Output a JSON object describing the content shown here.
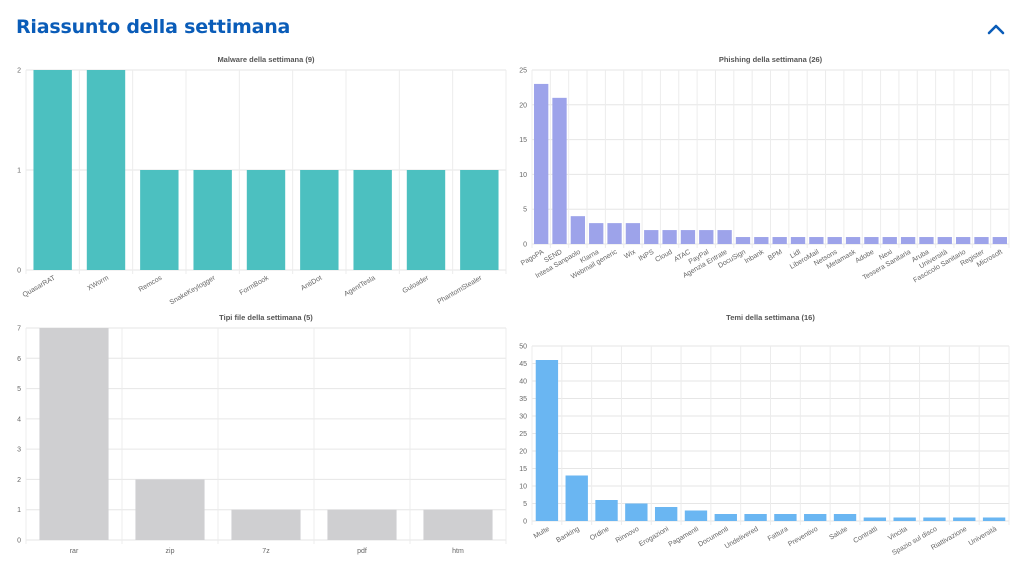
{
  "header": {
    "title": "Riassunto della settimana",
    "collapse_icon": "chevron-up-icon",
    "accent_color": "#0a5cb8"
  },
  "chart_data": [
    {
      "id": "malware",
      "type": "bar",
      "title": "Malware della settimana (9)",
      "color": "#4cc0c0",
      "categories": [
        "QuasarRAT",
        "XWorm",
        "Remcos",
        "SnakeKeylogger",
        "FormBook",
        "AntiDot",
        "AgentTesla",
        "Guloader",
        "PhantomStealer"
      ],
      "values": [
        2,
        2,
        1,
        1,
        1,
        1,
        1,
        1,
        1
      ],
      "ylim": [
        0,
        2
      ],
      "yticks": [
        0,
        1,
        2
      ],
      "rotated_labels": true,
      "grid": true,
      "xlabel": "",
      "ylabel": ""
    },
    {
      "id": "phishing",
      "type": "bar",
      "title": "Phishing della settimana (26)",
      "color": "#9da3ea",
      "categories": [
        "PagoPA",
        "SEND",
        "Intesa Sanpaolo",
        "Klarna",
        "Webmail generic",
        "Wix",
        "INPS",
        "Cloud",
        "ATAC",
        "PayPal",
        "Agenzia Entrate",
        "DocuSign",
        "Inbank",
        "BPM",
        "Lidl",
        "LiberoMail",
        "Netsons",
        "Metamask",
        "Adobe",
        "Nexi",
        "Tessera Sanitaria",
        "Aruba",
        "Università",
        "Fascicolo Sanitario",
        "Register",
        "Microsoft"
      ],
      "values": [
        23,
        21,
        4,
        3,
        3,
        3,
        2,
        2,
        2,
        2,
        2,
        1,
        1,
        1,
        1,
        1,
        1,
        1,
        1,
        1,
        1,
        1,
        1,
        1,
        1,
        1
      ],
      "ylim": [
        0,
        25
      ],
      "yticks": [
        0,
        5,
        10,
        15,
        20,
        25
      ],
      "rotated_labels": true,
      "grid": true,
      "xlabel": "",
      "ylabel": ""
    },
    {
      "id": "filetypes",
      "type": "bar",
      "title": "Tipi file della settimana (5)",
      "color": "#cfcfd1",
      "categories": [
        "rar",
        "zip",
        "7z",
        "pdf",
        "htm"
      ],
      "values": [
        7,
        2,
        1,
        1,
        1
      ],
      "ylim": [
        0,
        7
      ],
      "yticks": [
        0,
        1,
        2,
        3,
        4,
        5,
        6,
        7
      ],
      "rotated_labels": false,
      "grid": true,
      "xlabel": "",
      "ylabel": ""
    },
    {
      "id": "themes",
      "type": "bar",
      "title": "Temi della settimana (16)",
      "color": "#6ab6f2",
      "categories": [
        "Multe",
        "Banking",
        "Ordine",
        "Rinnovo",
        "Erogazioni",
        "Pagamenti",
        "Documenti",
        "Undelivered",
        "Fattura",
        "Preventivo",
        "Salute",
        "Contratti",
        "Vincita",
        "Spazio sul disco",
        "Riattivazione",
        "Università"
      ],
      "values": [
        46,
        13,
        6,
        5,
        4,
        3,
        2,
        2,
        2,
        2,
        2,
        1,
        1,
        1,
        1,
        1
      ],
      "ylim": [
        0,
        50
      ],
      "yticks": [
        0,
        5,
        10,
        15,
        20,
        25,
        30,
        35,
        40,
        45,
        50
      ],
      "rotated_labels": true,
      "grid": true,
      "xlabel": "",
      "ylabel": ""
    }
  ]
}
